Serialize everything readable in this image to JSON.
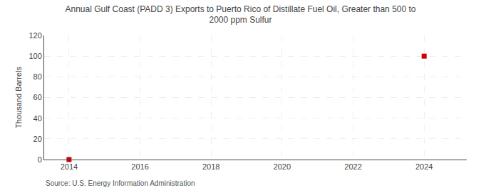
{
  "chart_data": {
    "type": "scatter",
    "title": "Annual Gulf Coast (PADD 3) Exports to Puerto Rico of Distillate Fuel Oil, Greater than 500 to\n2000 ppm Sulfur",
    "ylabel": "Thousand Barrels",
    "annotations": [
      "Source: U.S. Energy Information Administration"
    ],
    "x": [
      2014,
      2024
    ],
    "values": [
      0,
      100
    ],
    "color": "#cc0000",
    "marker": "square",
    "xlim": [
      2013.3,
      2025.2
    ],
    "ylim": [
      0,
      120
    ],
    "xticks": [
      2014,
      2016,
      2018,
      2020,
      2022,
      2024
    ],
    "yticks": [
      0,
      20,
      40,
      60,
      80,
      100,
      120
    ],
    "grid": true
  }
}
